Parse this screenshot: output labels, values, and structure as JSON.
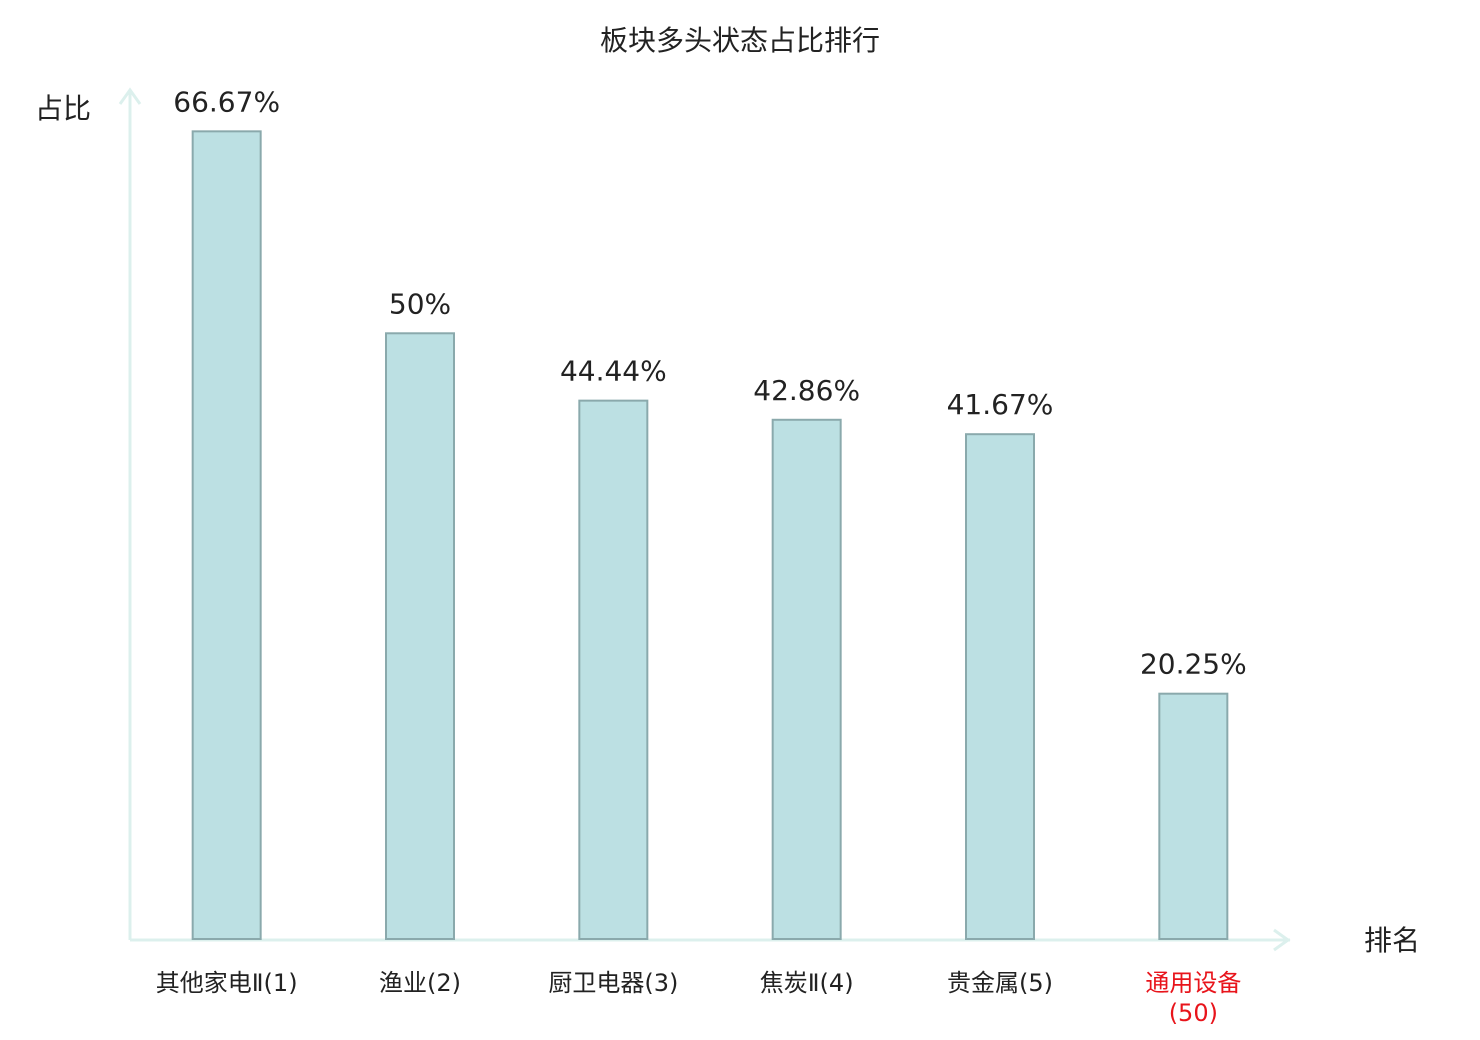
{
  "chart_data": {
    "type": "bar",
    "title": "板块多头状态占比排行",
    "y_label": "占比",
    "x_label": "排名",
    "categories": [
      "其他家电Ⅱ(1)",
      "渔业(2)",
      "厨卫电器(3)",
      "焦炭Ⅱ(4)",
      "贵金属(5)",
      "通用设备(50)"
    ],
    "values": [
      66.67,
      50,
      44.44,
      42.86,
      41.67,
      20.25
    ],
    "value_labels": [
      "66.67%",
      "50%",
      "44.44%",
      "42.86%",
      "41.67%",
      "20.25%"
    ],
    "color": "#bce0e3",
    "edge_color": "#8aa9ac",
    "highlight": {
      "index": 5,
      "color": "#e8141b"
    },
    "ylim": [
      0,
      70
    ],
    "grid": false
  }
}
